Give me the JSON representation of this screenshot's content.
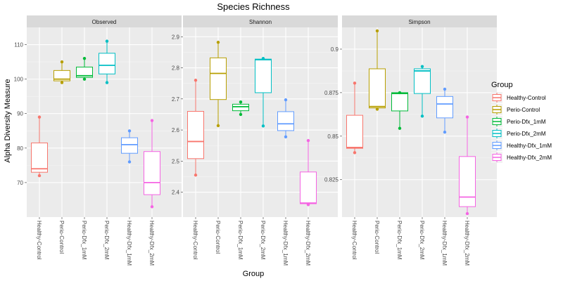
{
  "chart_data": {
    "type": "boxplot",
    "title": "Species Richness",
    "xlabel": "Group",
    "ylabel": "Alpha Diversity Measure",
    "legend_title": "Group",
    "legend_position": "right",
    "grid": true,
    "groups": [
      "Healthy-Control",
      "Perio-Control",
      "Perio-Dfx_1mM",
      "Perio-Dfx_2mM",
      "Healthy-Dfx_1mM",
      "Healthy-Dfx_2mM"
    ],
    "colors": [
      "#F8766D",
      "#B79F00",
      "#00BA38",
      "#00BFC4",
      "#619CFF",
      "#F564E3"
    ],
    "panels": [
      {
        "name": "Observed",
        "ylim": [
          60,
          115
        ],
        "yticks": [
          70,
          80,
          90,
          100,
          110
        ],
        "boxes": [
          {
            "min": 72,
            "q1": 73,
            "median": 74,
            "q3": 81.5,
            "max": 89
          },
          {
            "min": 99,
            "q1": 99.5,
            "median": 100,
            "q3": 102.5,
            "max": 105
          },
          {
            "min": 100,
            "q1": 100.5,
            "median": 101,
            "q3": 103.5,
            "max": 106
          },
          {
            "min": 99,
            "q1": 101.5,
            "median": 104,
            "q3": 107.5,
            "max": 111
          },
          {
            "min": 76,
            "q1": 78.5,
            "median": 81,
            "q3": 83,
            "max": 85
          },
          {
            "min": 63,
            "q1": 66.5,
            "median": 70,
            "q3": 79,
            "max": 88
          }
        ],
        "points": [
          [
            72,
            89
          ],
          [
            99,
            105
          ],
          [
            100,
            106
          ],
          [
            99,
            111
          ],
          [
            76,
            85
          ],
          [
            63,
            88
          ]
        ]
      },
      {
        "name": "Shannon",
        "ylim": [
          2.32,
          2.93
        ],
        "yticks": [
          2.4,
          2.5,
          2.6,
          2.7,
          2.8,
          2.9
        ],
        "boxes": [
          {
            "min": 2.455,
            "q1": 2.508,
            "median": 2.563,
            "q3": 2.66,
            "max": 2.76
          },
          {
            "min": 2.614,
            "q1": 2.698,
            "median": 2.782,
            "q3": 2.832,
            "max": 2.882
          },
          {
            "min": 2.65,
            "q1": 2.662,
            "median": 2.675,
            "q3": 2.683,
            "max": 2.69
          },
          {
            "min": 2.613,
            "q1": 2.72,
            "median": 2.826,
            "q3": 2.828,
            "max": 2.83
          },
          {
            "min": 2.578,
            "q1": 2.598,
            "median": 2.62,
            "q3": 2.659,
            "max": 2.697
          },
          {
            "min": 2.36,
            "q1": 2.363,
            "median": 2.365,
            "q3": 2.465,
            "max": 2.566
          }
        ],
        "points": [
          [
            2.455,
            2.76
          ],
          [
            2.614,
            2.882
          ],
          [
            2.65,
            2.69
          ],
          [
            2.613,
            2.83
          ],
          [
            2.578,
            2.697
          ],
          [
            2.36,
            2.566
          ]
        ]
      },
      {
        "name": "Simpson",
        "ylim": [
          0.8035,
          0.9125
        ],
        "yticks": [
          0.825,
          0.85,
          0.875,
          0.9
        ],
        "boxes": [
          {
            "min": 0.8405,
            "q1": 0.843,
            "median": 0.8435,
            "q3": 0.862,
            "max": 0.8805
          },
          {
            "min": 0.8655,
            "q1": 0.8662,
            "median": 0.867,
            "q3": 0.8887,
            "max": 0.9105
          },
          {
            "min": 0.8545,
            "q1": 0.8645,
            "median": 0.8745,
            "q3": 0.875,
            "max": 0.875
          },
          {
            "min": 0.8615,
            "q1": 0.8745,
            "median": 0.8875,
            "q3": 0.8887,
            "max": 0.89
          },
          {
            "min": 0.8523,
            "q1": 0.8605,
            "median": 0.8685,
            "q3": 0.8728,
            "max": 0.877
          },
          {
            "min": 0.8055,
            "q1": 0.8095,
            "median": 0.815,
            "q3": 0.8383,
            "max": 0.861
          }
        ],
        "points": [
          [
            0.8405,
            0.8805
          ],
          [
            0.8655,
            0.9105
          ],
          [
            0.8545,
            0.875
          ],
          [
            0.8615,
            0.89
          ],
          [
            0.8523,
            0.877
          ],
          [
            0.8055,
            0.861
          ]
        ]
      }
    ]
  }
}
